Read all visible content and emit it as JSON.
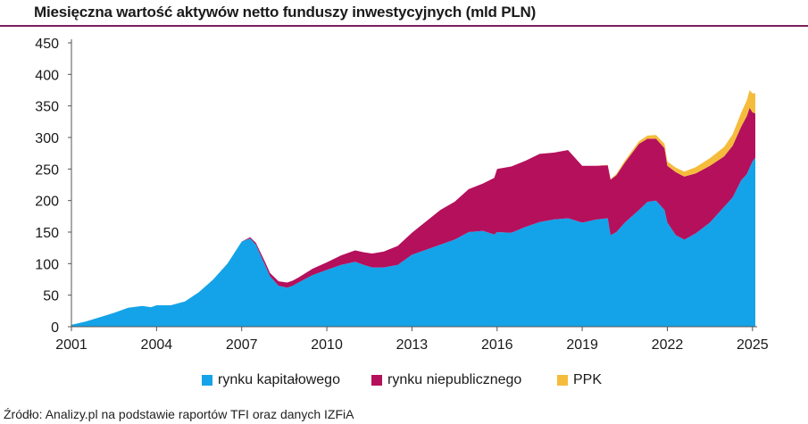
{
  "title": "Miesięczna wartość aktywów netto funduszy inwestycyjnych (mld PLN)",
  "source": "Źródło: Analizy.pl na podstawie raportów TFI oraz danych IZFiA",
  "colors": {
    "rynku_kapitalowego": "#14a3e8",
    "rynku_niepublicznego": "#b5105c",
    "PPK": "#f5bc3c",
    "title_rule": "#7a1f5e"
  },
  "chart_data": {
    "type": "area",
    "stacked": true,
    "title": "Miesięczna wartość aktywów netto funduszy inwestycyjnych (mld PLN)",
    "xlabel": "",
    "ylabel": "",
    "ylim": [
      0,
      450
    ],
    "xlim": [
      2001,
      2025.1
    ],
    "x_ticks": [
      "2001",
      "2004",
      "2007",
      "2010",
      "2013",
      "2016",
      "2019",
      "2022",
      "2025"
    ],
    "y_ticks": [
      "0",
      "50",
      "100",
      "150",
      "200",
      "250",
      "300",
      "350",
      "400",
      "450"
    ],
    "grid": false,
    "legend": "bottom",
    "x": [
      2001.0,
      2001.5,
      2002.0,
      2002.5,
      2003.0,
      2003.5,
      2003.8,
      2004.0,
      2004.5,
      2005.0,
      2005.5,
      2006.0,
      2006.5,
      2007.0,
      2007.3,
      2007.5,
      2007.8,
      2008.0,
      2008.3,
      2008.6,
      2008.8,
      2009.0,
      2009.5,
      2010.0,
      2010.5,
      2011.0,
      2011.3,
      2011.6,
      2012.0,
      2012.5,
      2013.0,
      2013.5,
      2014.0,
      2014.5,
      2015.0,
      2015.5,
      2015.9,
      2016.0,
      2016.5,
      2017.0,
      2017.5,
      2018.0,
      2018.5,
      2019.0,
      2019.5,
      2019.9,
      2020.0,
      2020.2,
      2020.5,
      2021.0,
      2021.3,
      2021.6,
      2021.9,
      2022.0,
      2022.3,
      2022.6,
      2023.0,
      2023.5,
      2024.0,
      2024.3,
      2024.6,
      2024.8,
      2024.9,
      2025.0,
      2025.1
    ],
    "series": [
      {
        "name": "rynku kapitałowego",
        "values": [
          3,
          8,
          15,
          22,
          30,
          33,
          31,
          34,
          34,
          40,
          55,
          75,
          100,
          135,
          140,
          130,
          100,
          80,
          65,
          62,
          65,
          70,
          82,
          90,
          98,
          103,
          98,
          94,
          94,
          98,
          114,
          122,
          130,
          138,
          150,
          152,
          146,
          150,
          149,
          158,
          166,
          170,
          172,
          165,
          170,
          172,
          145,
          150,
          165,
          185,
          198,
          200,
          185,
          165,
          145,
          138,
          148,
          165,
          190,
          205,
          232,
          242,
          252,
          262,
          268
        ]
      },
      {
        "name": "rynku niepublicznego",
        "values": [
          0,
          0,
          0,
          0,
          0,
          0,
          0,
          0,
          0,
          0,
          0,
          0,
          0,
          0,
          2,
          3,
          5,
          5,
          7,
          8,
          8,
          8,
          10,
          12,
          15,
          18,
          20,
          22,
          25,
          30,
          35,
          45,
          55,
          60,
          68,
          75,
          90,
          100,
          105,
          105,
          108,
          106,
          108,
          90,
          85,
          84,
          88,
          90,
          95,
          105,
          100,
          98,
          98,
          90,
          100,
          100,
          95,
          90,
          80,
          82,
          85,
          92,
          95,
          78,
          70
        ]
      },
      {
        "name": "PPK",
        "values": [
          0,
          0,
          0,
          0,
          0,
          0,
          0,
          0,
          0,
          0,
          0,
          0,
          0,
          0,
          0,
          0,
          0,
          0,
          0,
          0,
          0,
          0,
          0,
          0,
          0,
          0,
          0,
          0,
          0,
          0,
          0,
          0,
          0,
          0,
          0,
          0,
          0,
          0,
          0,
          0,
          0,
          0,
          0,
          0,
          0,
          0.5,
          1,
          2,
          3,
          4,
          5,
          6,
          7,
          7,
          7,
          8,
          10,
          12,
          15,
          18,
          22,
          25,
          28,
          30,
          32
        ]
      }
    ]
  },
  "legend": [
    {
      "label": "rynku kapitałowego"
    },
    {
      "label": "rynku niepublicznego"
    },
    {
      "label": "PPK"
    }
  ]
}
